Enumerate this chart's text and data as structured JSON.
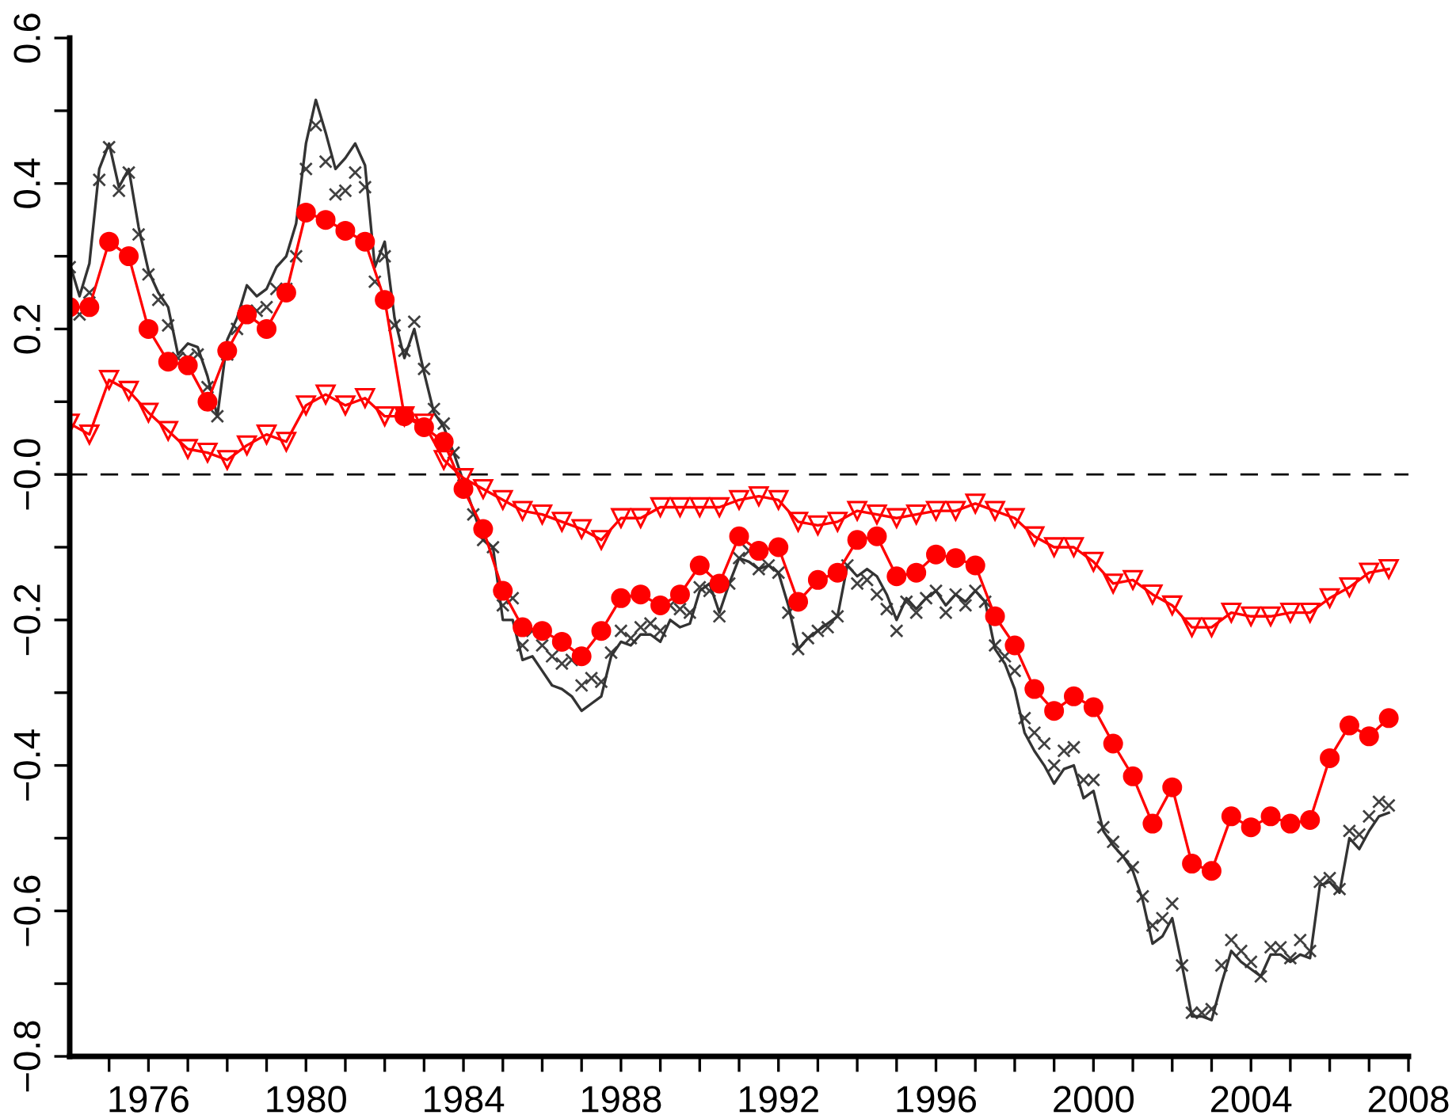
{
  "chart_data": {
    "type": "line",
    "xlim": [
      1974,
      2008
    ],
    "xticks": [
      {
        "value": 1975,
        "label": null
      },
      1976,
      {
        "value": 1977,
        "label": null
      },
      {
        "value": 1978,
        "label": null
      },
      {
        "value": 1979,
        "label": null
      },
      1980,
      {
        "value": 1981,
        "label": null
      },
      {
        "value": 1982,
        "label": null
      },
      {
        "value": 1983,
        "label": null
      },
      1984,
      {
        "value": 1985,
        "label": null
      },
      {
        "value": 1986,
        "label": null
      },
      {
        "value": 1987,
        "label": null
      },
      1988,
      {
        "value": 1989,
        "label": null
      },
      {
        "value": 1990,
        "label": null
      },
      {
        "value": 1991,
        "label": null
      },
      1992,
      {
        "value": 1993,
        "label": null
      },
      {
        "value": 1994,
        "label": null
      },
      {
        "value": 1995,
        "label": null
      },
      1996,
      {
        "value": 1997,
        "label": null
      },
      {
        "value": 1998,
        "label": null
      },
      {
        "value": 1999,
        "label": null
      },
      2000,
      {
        "value": 2001,
        "label": null
      },
      {
        "value": 2002,
        "label": null
      },
      {
        "value": 2003,
        "label": null
      },
      2004,
      {
        "value": 2005,
        "label": null
      },
      {
        "value": 2006,
        "label": null
      },
      {
        "value": 2007,
        "label": null
      },
      2008
    ],
    "ylim": [
      -0.8,
      0.6
    ],
    "yticks": [
      {
        "value": -0.8,
        "label": "−0.8"
      },
      {
        "value": -0.7,
        "label": null
      },
      {
        "value": -0.6,
        "label": "−0.6"
      },
      {
        "value": -0.5,
        "label": null
      },
      {
        "value": -0.4,
        "label": "−0.4"
      },
      {
        "value": -0.3,
        "label": null
      },
      {
        "value": -0.2,
        "label": "−0.2"
      },
      {
        "value": -0.1,
        "label": null
      },
      {
        "value": 0.0,
        "label": "−0.0"
      },
      {
        "value": 0.1,
        "label": null
      },
      0.2,
      {
        "value": 0.3,
        "label": null
      },
      0.4,
      {
        "value": 0.5,
        "label": null
      },
      0.6
    ],
    "grid": false,
    "ref_lines": [
      {
        "axis": "y",
        "value": 0,
        "color": "#000000",
        "line_style": "dashed"
      }
    ],
    "series": [
      {
        "color": "#333333",
        "marker": "none",
        "x": [
          1974.0,
          1974.25,
          1974.5,
          1974.75,
          1975.0,
          1975.25,
          1975.5,
          1975.75,
          1976.0,
          1976.25,
          1976.5,
          1976.75,
          1977.0,
          1977.25,
          1977.5,
          1977.75,
          1978.0,
          1978.25,
          1978.5,
          1978.75,
          1979.0,
          1979.25,
          1979.5,
          1979.75,
          1980.0,
          1980.25,
          1980.5,
          1980.75,
          1981.0,
          1981.25,
          1981.5,
          1981.75,
          1982.0,
          1982.25,
          1982.5,
          1982.75,
          1983.0,
          1983.25,
          1983.5,
          1983.75,
          1984.0,
          1984.25,
          1984.5,
          1984.75,
          1985.0,
          1985.25,
          1985.5,
          1985.75,
          1986.0,
          1986.25,
          1986.5,
          1986.75,
          1987.0,
          1987.25,
          1987.5,
          1987.75,
          1988.0,
          1988.25,
          1988.5,
          1988.75,
          1989.0,
          1989.25,
          1989.5,
          1989.75,
          1990.0,
          1990.25,
          1990.5,
          1990.75,
          1991.0,
          1991.25,
          1991.5,
          1991.75,
          1992.0,
          1992.25,
          1992.5,
          1992.75,
          1993.0,
          1993.25,
          1993.5,
          1993.75,
          1994.0,
          1994.25,
          1994.5,
          1994.75,
          1995.0,
          1995.25,
          1995.5,
          1995.75,
          1996.0,
          1996.25,
          1996.5,
          1996.75,
          1997.0,
          1997.25,
          1997.5,
          1997.75,
          1998.0,
          1998.25,
          1998.5,
          1998.75,
          1999.0,
          1999.25,
          1999.5,
          1999.75,
          2000.0,
          2000.25,
          2000.5,
          2000.75,
          2001.0,
          2001.25,
          2001.5,
          2001.75,
          2002.0,
          2002.25,
          2002.5,
          2002.75,
          2003.0,
          2003.25,
          2003.5,
          2003.75,
          2004.0,
          2004.25,
          2004.5,
          2004.75,
          2005.0,
          2005.25,
          2005.5,
          2005.75,
          2006.0,
          2006.25,
          2006.5,
          2006.75,
          2007.0,
          2007.25,
          2007.5
        ],
        "values": [
          0.29,
          0.245,
          0.29,
          0.42,
          0.455,
          0.395,
          0.42,
          0.34,
          0.28,
          0.25,
          0.23,
          0.165,
          0.18,
          0.175,
          0.135,
          0.08,
          0.185,
          0.215,
          0.26,
          0.245,
          0.255,
          0.285,
          0.3,
          0.345,
          0.455,
          0.515,
          0.47,
          0.42,
          0.435,
          0.455,
          0.425,
          0.285,
          0.32,
          0.215,
          0.16,
          0.2,
          0.14,
          0.085,
          0.065,
          0.03,
          -0.01,
          -0.05,
          -0.09,
          -0.1,
          -0.2,
          -0.2,
          -0.255,
          -0.25,
          -0.27,
          -0.29,
          -0.295,
          -0.305,
          -0.325,
          -0.315,
          -0.305,
          -0.25,
          -0.23,
          -0.235,
          -0.22,
          -0.22,
          -0.23,
          -0.2,
          -0.21,
          -0.205,
          -0.16,
          -0.15,
          -0.19,
          -0.15,
          -0.115,
          -0.12,
          -0.13,
          -0.125,
          -0.135,
          -0.18,
          -0.24,
          -0.225,
          -0.215,
          -0.205,
          -0.195,
          -0.125,
          -0.14,
          -0.13,
          -0.14,
          -0.165,
          -0.2,
          -0.17,
          -0.185,
          -0.17,
          -0.16,
          -0.18,
          -0.165,
          -0.175,
          -0.16,
          -0.175,
          -0.24,
          -0.26,
          -0.295,
          -0.355,
          -0.38,
          -0.4,
          -0.425,
          -0.405,
          -0.4,
          -0.445,
          -0.435,
          -0.49,
          -0.51,
          -0.525,
          -0.545,
          -0.585,
          -0.645,
          -0.635,
          -0.61,
          -0.675,
          -0.745,
          -0.745,
          -0.75,
          -0.7,
          -0.655,
          -0.67,
          -0.68,
          -0.69,
          -0.66,
          -0.66,
          -0.67,
          -0.66,
          -0.665,
          -0.565,
          -0.56,
          -0.575,
          -0.5,
          -0.515,
          -0.49,
          -0.47,
          -0.465
        ]
      },
      {
        "type": "scatter",
        "color": "#404040",
        "marker": "cross",
        "x": [
          1974.0,
          1974.25,
          1974.5,
          1974.75,
          1975.0,
          1975.25,
          1975.5,
          1975.75,
          1976.0,
          1976.25,
          1976.5,
          1976.75,
          1977.0,
          1977.25,
          1977.5,
          1977.75,
          1978.0,
          1978.25,
          1978.5,
          1978.75,
          1979.0,
          1979.25,
          1979.5,
          1979.75,
          1980.0,
          1980.25,
          1980.5,
          1980.75,
          1981.0,
          1981.25,
          1981.5,
          1981.75,
          1982.0,
          1982.25,
          1982.5,
          1982.75,
          1983.0,
          1983.25,
          1983.5,
          1983.75,
          1984.0,
          1984.25,
          1984.5,
          1984.75,
          1985.0,
          1985.25,
          1985.5,
          1985.75,
          1986.0,
          1986.25,
          1986.5,
          1986.75,
          1987.0,
          1987.25,
          1987.5,
          1987.75,
          1988.0,
          1988.25,
          1988.5,
          1988.75,
          1989.0,
          1989.25,
          1989.5,
          1989.75,
          1990.0,
          1990.25,
          1990.5,
          1990.75,
          1991.0,
          1991.25,
          1991.5,
          1991.75,
          1992.0,
          1992.25,
          1992.5,
          1992.75,
          1993.0,
          1993.25,
          1993.5,
          1993.75,
          1994.0,
          1994.25,
          1994.5,
          1994.75,
          1995.0,
          1995.25,
          1995.5,
          1995.75,
          1996.0,
          1996.25,
          1996.5,
          1996.75,
          1997.0,
          1997.25,
          1997.5,
          1997.75,
          1998.0,
          1998.25,
          1998.5,
          1998.75,
          1999.0,
          1999.25,
          1999.5,
          1999.75,
          2000.0,
          2000.25,
          2000.5,
          2000.75,
          2001.0,
          2001.25,
          2001.5,
          2001.75,
          2002.0,
          2002.25,
          2002.5,
          2002.75,
          2003.0,
          2003.25,
          2003.5,
          2003.75,
          2004.0,
          2004.25,
          2004.5,
          2004.75,
          2005.0,
          2005.25,
          2005.5,
          2005.75,
          2006.0,
          2006.25,
          2006.5,
          2006.75,
          2007.0,
          2007.25,
          2007.5
        ],
        "values": [
          0.285,
          0.22,
          0.25,
          0.405,
          0.45,
          0.39,
          0.415,
          0.33,
          0.275,
          0.24,
          0.205,
          0.16,
          0.16,
          0.165,
          0.12,
          0.08,
          0.165,
          0.2,
          0.225,
          0.225,
          0.23,
          0.255,
          0.255,
          0.3,
          0.42,
          0.48,
          0.43,
          0.385,
          0.39,
          0.415,
          0.395,
          0.265,
          0.3,
          0.205,
          0.17,
          0.21,
          0.145,
          0.09,
          0.07,
          0.03,
          -0.015,
          -0.055,
          -0.09,
          -0.1,
          -0.18,
          -0.17,
          -0.235,
          -0.215,
          -0.235,
          -0.25,
          -0.26,
          -0.255,
          -0.29,
          -0.28,
          -0.285,
          -0.245,
          -0.215,
          -0.225,
          -0.21,
          -0.205,
          -0.215,
          -0.18,
          -0.185,
          -0.19,
          -0.155,
          -0.16,
          -0.195,
          -0.15,
          -0.115,
          -0.105,
          -0.13,
          -0.125,
          -0.135,
          -0.19,
          -0.24,
          -0.225,
          -0.215,
          -0.21,
          -0.195,
          -0.125,
          -0.15,
          -0.145,
          -0.165,
          -0.185,
          -0.215,
          -0.175,
          -0.19,
          -0.17,
          -0.16,
          -0.19,
          -0.165,
          -0.18,
          -0.16,
          -0.175,
          -0.235,
          -0.25,
          -0.27,
          -0.335,
          -0.355,
          -0.37,
          -0.4,
          -0.38,
          -0.375,
          -0.42,
          -0.42,
          -0.485,
          -0.505,
          -0.525,
          -0.54,
          -0.58,
          -0.62,
          -0.61,
          -0.59,
          -0.675,
          -0.74,
          -0.74,
          -0.735,
          -0.675,
          -0.64,
          -0.655,
          -0.67,
          -0.69,
          -0.65,
          -0.65,
          -0.665,
          -0.64,
          -0.655,
          -0.56,
          -0.555,
          -0.57,
          -0.49,
          -0.495,
          -0.47,
          -0.45,
          -0.455
        ]
      },
      {
        "color": "#ff0000",
        "marker": "circle",
        "x": [
          1974.0,
          1974.5,
          1975.0,
          1975.5,
          1976.0,
          1976.5,
          1977.0,
          1977.5,
          1978.0,
          1978.5,
          1979.0,
          1979.5,
          1980.0,
          1980.5,
          1981.0,
          1981.5,
          1982.0,
          1982.5,
          1983.0,
          1983.5,
          1984.0,
          1984.5,
          1985.0,
          1985.5,
          1986.0,
          1986.5,
          1987.0,
          1987.5,
          1988.0,
          1988.5,
          1989.0,
          1989.5,
          1990.0,
          1990.5,
          1991.0,
          1991.5,
          1992.0,
          1992.5,
          1993.0,
          1993.5,
          1994.0,
          1994.5,
          1995.0,
          1995.5,
          1996.0,
          1996.5,
          1997.0,
          1997.5,
          1998.0,
          1998.5,
          1999.0,
          1999.5,
          2000.0,
          2000.5,
          2001.0,
          2001.5,
          2002.0,
          2002.5,
          2003.0,
          2003.5,
          2004.0,
          2004.5,
          2005.0,
          2005.5,
          2006.0,
          2006.5,
          2007.0,
          2007.5
        ],
        "values": [
          0.23,
          0.23,
          0.32,
          0.3,
          0.2,
          0.155,
          0.15,
          0.1,
          0.17,
          0.22,
          0.2,
          0.25,
          0.36,
          0.35,
          0.335,
          0.32,
          0.24,
          0.08,
          0.065,
          0.045,
          -0.02,
          -0.075,
          -0.16,
          -0.21,
          -0.215,
          -0.23,
          -0.25,
          -0.215,
          -0.17,
          -0.165,
          -0.18,
          -0.165,
          -0.125,
          -0.15,
          -0.085,
          -0.105,
          -0.1,
          -0.175,
          -0.145,
          -0.135,
          -0.09,
          -0.085,
          -0.14,
          -0.135,
          -0.11,
          -0.115,
          -0.125,
          -0.195,
          -0.235,
          -0.295,
          -0.325,
          -0.305,
          -0.32,
          -0.37,
          -0.415,
          -0.48,
          -0.43,
          -0.535,
          -0.545,
          -0.47,
          -0.485,
          -0.47,
          -0.48,
          -0.475,
          -0.39,
          -0.345,
          -0.36,
          -0.335
        ]
      },
      {
        "color": "#ff0000",
        "marker": "triangle",
        "x": [
          1974.0,
          1974.5,
          1975.0,
          1975.5,
          1976.0,
          1976.5,
          1977.0,
          1977.5,
          1978.0,
          1978.5,
          1979.0,
          1979.5,
          1980.0,
          1980.5,
          1981.0,
          1981.5,
          1982.0,
          1982.5,
          1983.0,
          1983.5,
          1984.0,
          1984.5,
          1985.0,
          1985.5,
          1986.0,
          1986.5,
          1987.0,
          1987.5,
          1988.0,
          1988.5,
          1989.0,
          1989.5,
          1990.0,
          1990.5,
          1991.0,
          1991.5,
          1992.0,
          1992.5,
          1993.0,
          1993.5,
          1994.0,
          1994.5,
          1995.0,
          1995.5,
          1996.0,
          1996.5,
          1997.0,
          1997.5,
          1998.0,
          1998.5,
          1999.0,
          1999.5,
          2000.0,
          2000.5,
          2001.0,
          2001.5,
          2002.0,
          2002.5,
          2003.0,
          2003.5,
          2004.0,
          2004.5,
          2005.0,
          2005.5,
          2006.0,
          2006.5,
          2007.0,
          2007.5
        ],
        "values": [
          0.07,
          0.055,
          0.13,
          0.115,
          0.085,
          0.06,
          0.035,
          0.03,
          0.02,
          0.04,
          0.055,
          0.045,
          0.095,
          0.11,
          0.095,
          0.105,
          0.08,
          0.08,
          0.07,
          0.02,
          -0.005,
          -0.02,
          -0.035,
          -0.05,
          -0.055,
          -0.065,
          -0.075,
          -0.09,
          -0.06,
          -0.06,
          -0.045,
          -0.045,
          -0.045,
          -0.045,
          -0.035,
          -0.03,
          -0.035,
          -0.065,
          -0.07,
          -0.065,
          -0.05,
          -0.055,
          -0.06,
          -0.055,
          -0.05,
          -0.05,
          -0.04,
          -0.05,
          -0.06,
          -0.085,
          -0.1,
          -0.1,
          -0.12,
          -0.15,
          -0.145,
          -0.165,
          -0.18,
          -0.21,
          -0.21,
          -0.19,
          -0.195,
          -0.195,
          -0.19,
          -0.19,
          -0.17,
          -0.155,
          -0.135,
          -0.13
        ]
      }
    ]
  }
}
